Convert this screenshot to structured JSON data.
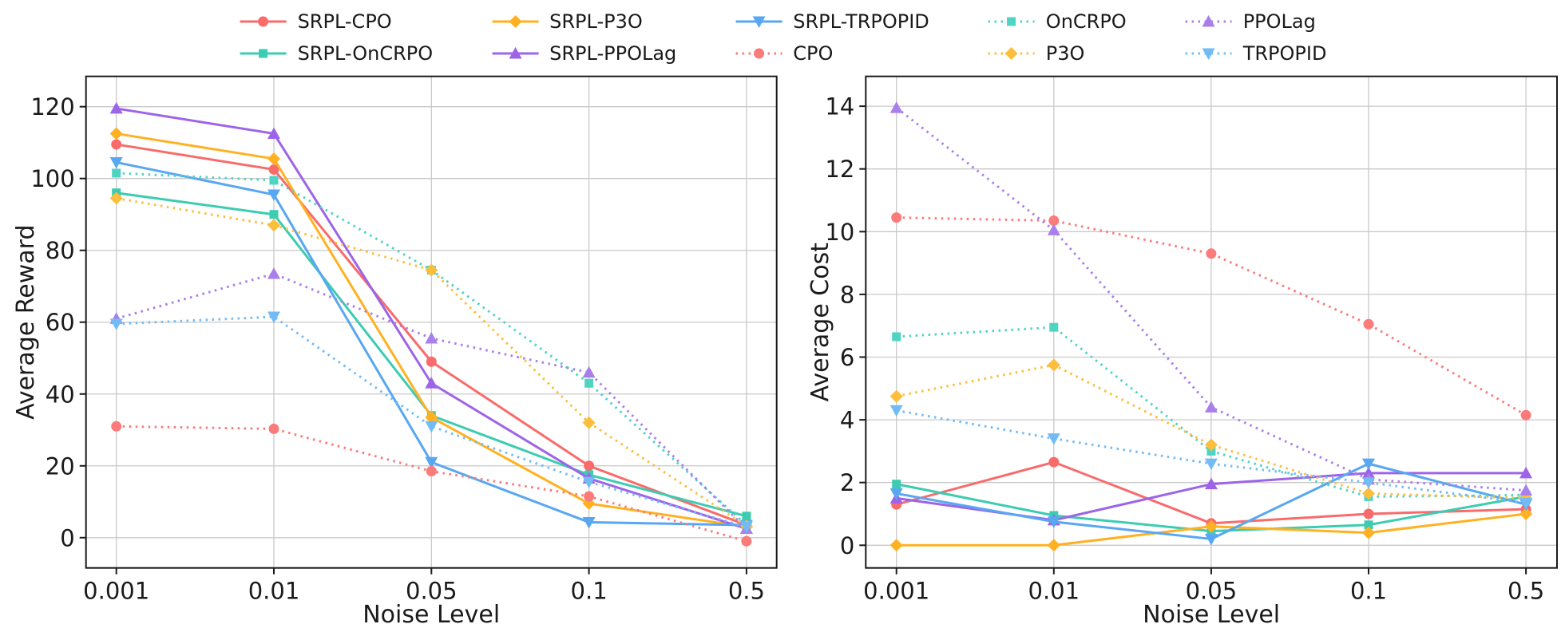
{
  "figure": {
    "background": "#FFFFFF"
  },
  "legend": {
    "position": "top-center",
    "rows": 2,
    "labels": [
      "SRPL-CPO",
      "SRPL-OnCRPO",
      "SRPL-P3O",
      "SRPL-PPOLag",
      "SRPL-TRPOPID",
      "CPO",
      "OnCRPO",
      "P3O",
      "PPOLag",
      "TRPOPID"
    ]
  },
  "chart_data": [
    {
      "type": "line",
      "title": "",
      "xlabel": "Noise Level",
      "ylabel": "Average Reward",
      "categories": [
        "0.001",
        "0.01",
        "0.05",
        "0.1",
        "0.5"
      ],
      "y_ticks": [
        0,
        20,
        40,
        60,
        80,
        100,
        120
      ],
      "ylim": [
        -8.4,
        128.4
      ],
      "grid": true,
      "legend_position": "above-figure",
      "series": [
        {
          "name": "SRPL-CPO",
          "color": "#F96B6B",
          "line_style": "solid",
          "marker": "circle",
          "values": [
            109.5,
            102.5,
            49,
            20,
            3.5
          ]
        },
        {
          "name": "SRPL-OnCRPO",
          "color": "#3CCCB1",
          "line_style": "solid",
          "marker": "square",
          "values": [
            96,
            90,
            34,
            17.5,
            6
          ]
        },
        {
          "name": "SRPL-P3O",
          "color": "#FFB121",
          "line_style": "solid",
          "marker": "diamond",
          "values": [
            112.5,
            105.5,
            33.5,
            9.5,
            3
          ]
        },
        {
          "name": "SRPL-PPOLag",
          "color": "#9D64E8",
          "line_style": "solid",
          "marker": "triangle-up",
          "values": [
            119.5,
            112.5,
            43,
            16.5,
            2.5
          ]
        },
        {
          "name": "SRPL-TRPOPID",
          "color": "#58A7F2",
          "line_style": "solid",
          "marker": "triangle-down",
          "values": [
            104.5,
            95.5,
            21,
            4.3,
            3.5
          ]
        },
        {
          "name": "CPO",
          "color": "#FB7A7A",
          "line_style": "dotted",
          "marker": "circle",
          "values": [
            31,
            30.3,
            18.5,
            11.5,
            -1
          ]
        },
        {
          "name": "OnCRPO",
          "color": "#4FD4C4",
          "line_style": "dotted",
          "marker": "square",
          "values": [
            101.5,
            99.5,
            74.5,
            43,
            3.5
          ]
        },
        {
          "name": "P3O",
          "color": "#FCBE3C",
          "line_style": "dotted",
          "marker": "diamond",
          "values": [
            94.5,
            87,
            74.5,
            32,
            3.2
          ]
        },
        {
          "name": "PPOLag",
          "color": "#A97FEB",
          "line_style": "dotted",
          "marker": "triangle-up",
          "values": [
            61,
            73.5,
            55.5,
            46,
            2.5
          ]
        },
        {
          "name": "TRPOPID",
          "color": "#72BBF5",
          "line_style": "dotted",
          "marker": "triangle-down",
          "values": [
            59.5,
            61.5,
            31,
            15.5,
            3
          ]
        }
      ]
    },
    {
      "type": "line",
      "title": "",
      "xlabel": "Noise Level",
      "ylabel": "Average Cost",
      "categories": [
        "0.001",
        "0.01",
        "0.05",
        "0.1",
        "0.5"
      ],
      "y_ticks": [
        0,
        2,
        4,
        6,
        8,
        10,
        12,
        14
      ],
      "ylim": [
        -0.72,
        14.95
      ],
      "grid": true,
      "legend_position": "above-figure",
      "series": [
        {
          "name": "SRPL-CPO",
          "color": "#F96B6B",
          "line_style": "solid",
          "marker": "circle",
          "values": [
            1.3,
            2.65,
            0.7,
            1.0,
            1.15
          ]
        },
        {
          "name": "SRPL-OnCRPO",
          "color": "#3CCCB1",
          "line_style": "solid",
          "marker": "square",
          "values": [
            1.95,
            0.95,
            0.45,
            0.65,
            1.55
          ]
        },
        {
          "name": "SRPL-P3O",
          "color": "#FFB121",
          "line_style": "solid",
          "marker": "diamond",
          "values": [
            0.0,
            0.0,
            0.6,
            0.4,
            1.0
          ]
        },
        {
          "name": "SRPL-PPOLag",
          "color": "#9D64E8",
          "line_style": "solid",
          "marker": "triangle-up",
          "values": [
            1.5,
            0.8,
            1.95,
            2.3,
            2.3
          ]
        },
        {
          "name": "SRPL-TRPOPID",
          "color": "#58A7F2",
          "line_style": "solid",
          "marker": "triangle-down",
          "values": [
            1.65,
            0.75,
            0.2,
            2.6,
            1.3
          ]
        },
        {
          "name": "CPO",
          "color": "#FB7A7A",
          "line_style": "dotted",
          "marker": "circle",
          "values": [
            10.45,
            10.35,
            9.3,
            7.05,
            4.15
          ]
        },
        {
          "name": "OnCRPO",
          "color": "#4FD4C4",
          "line_style": "dotted",
          "marker": "square",
          "values": [
            6.65,
            6.95,
            3.0,
            1.55,
            1.6
          ]
        },
        {
          "name": "P3O",
          "color": "#FCBE3C",
          "line_style": "dotted",
          "marker": "diamond",
          "values": [
            4.75,
            5.75,
            3.2,
            1.65,
            1.5
          ]
        },
        {
          "name": "PPOLag",
          "color": "#A97FEB",
          "line_style": "dotted",
          "marker": "triangle-up",
          "values": [
            13.95,
            10.05,
            4.4,
            2.1,
            1.75
          ]
        },
        {
          "name": "TRPOPID",
          "color": "#72BBF5",
          "line_style": "dotted",
          "marker": "triangle-down",
          "values": [
            4.3,
            3.4,
            2.6,
            2.0,
            1.35
          ]
        }
      ]
    }
  ]
}
